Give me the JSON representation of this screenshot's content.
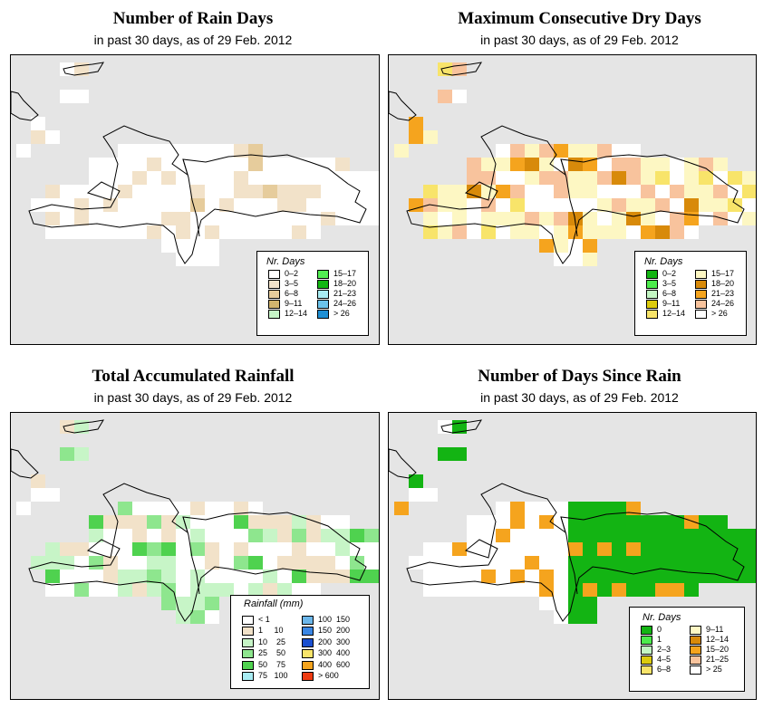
{
  "panels": [
    {
      "id": "rain-days",
      "title": "Number of Rain Days",
      "subtitle": "in past 30 days, as of  29 Feb. 2012",
      "legend": {
        "title": "Nr. Days",
        "items": [
          {
            "label": "0–2",
            "color": "#ffffff"
          },
          {
            "label": "3–5",
            "color": "#f2e2c9"
          },
          {
            "label": "6–8",
            "color": "#e6cc9c"
          },
          {
            "label": "9–11",
            "color": "#d2b46e"
          },
          {
            "label": "12–14",
            "color": "#c7f5c7"
          },
          {
            "label": "15–17",
            "color": "#52ee52"
          },
          {
            "label": "18–20",
            "color": "#12b712"
          },
          {
            "label": "21–23",
            "color": "#a8ecf3"
          },
          {
            "label": "24–26",
            "color": "#6bc3ea"
          },
          {
            "label": "> 26",
            "color": "#1f8fd3"
          }
        ]
      }
    },
    {
      "id": "max-dry",
      "title": "Maximum Consecutive Dry Days",
      "subtitle": "in past 30 days, as of  29 Feb. 2012",
      "legend": {
        "title": "Nr. Days",
        "items": [
          {
            "label": "0–2",
            "color": "#13b413"
          },
          {
            "label": "3–5",
            "color": "#4dec4d"
          },
          {
            "label": "6–8",
            "color": "#c3f6c3"
          },
          {
            "label": "9–11",
            "color": "#dccb0e"
          },
          {
            "label": "12–14",
            "color": "#f8e46a"
          },
          {
            "label": "15–17",
            "color": "#fdf7c3"
          },
          {
            "label": "18–20",
            "color": "#d88a0a"
          },
          {
            "label": "21–23",
            "color": "#f5a41e"
          },
          {
            "label": "24–26",
            "color": "#f8c39d"
          },
          {
            "label": "> 26",
            "color": "#ffffff"
          }
        ]
      }
    },
    {
      "id": "total-rain",
      "title": "Total Accumulated Rainfall",
      "subtitle": "in past 30 days, as of  29 Feb. 2012",
      "legend": {
        "title": "Rainfall (mm)",
        "items": [
          {
            "label": "< 1",
            "color": "#ffffff"
          },
          {
            "label": "1     10",
            "color": "#f2e2c9"
          },
          {
            "label": "10    25",
            "color": "#c7f5c7"
          },
          {
            "label": "25    50",
            "color": "#8ee68e"
          },
          {
            "label": "50    75",
            "color": "#4fd24f"
          },
          {
            "label": "75   100",
            "color": "#a8ecf3"
          },
          {
            "label": "100  150",
            "color": "#6bb6ea"
          },
          {
            "label": "150  200",
            "color": "#3a86e4"
          },
          {
            "label": "200  300",
            "color": "#1a4fd0"
          },
          {
            "label": "300  400",
            "color": "#f8e46a"
          },
          {
            "label": "400  600",
            "color": "#f5a41e"
          },
          {
            "label": "> 600",
            "color": "#ee3b12"
          }
        ]
      }
    },
    {
      "id": "days-since",
      "title": "Number of Days Since Rain",
      "subtitle": "in past 30 days, as of  29 Feb. 2012",
      "legend": {
        "title": "Nr. Days",
        "items": [
          {
            "label": "0",
            "color": "#13b413"
          },
          {
            "label": "1",
            "color": "#4dec4d"
          },
          {
            "label": "2–3",
            "color": "#c3f6c3"
          },
          {
            "label": "4–5",
            "color": "#dccb0e"
          },
          {
            "label": "6–8",
            "color": "#f8e46a"
          },
          {
            "label": "9–11",
            "color": "#fdf7c3"
          },
          {
            "label": "12–14",
            "color": "#d88a0a"
          },
          {
            "label": "15–20",
            "color": "#f5a41e"
          },
          {
            "label": "21–25",
            "color": "#f8c39d"
          },
          {
            "label": "> 25",
            "color": "#ffffff"
          }
        ]
      }
    }
  ]
}
